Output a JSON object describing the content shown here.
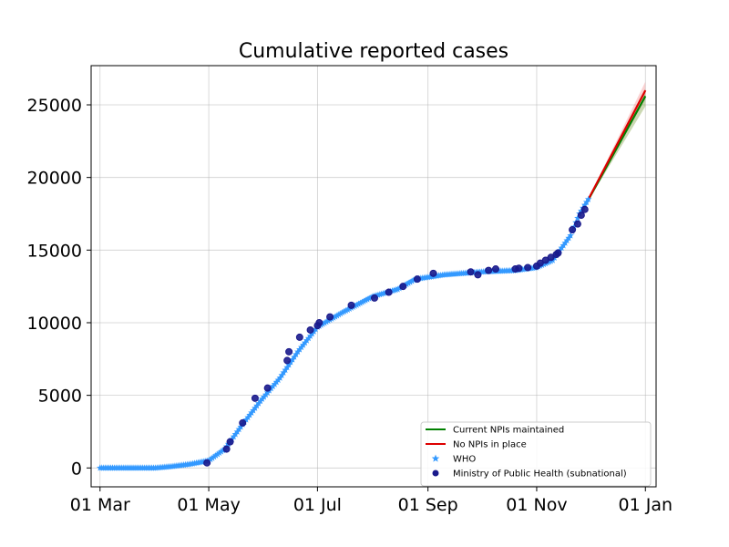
{
  "chart_data": {
    "type": "line",
    "title": "Cumulative reported cases",
    "xlabel": "",
    "ylabel": "",
    "x_axis": {
      "type": "date",
      "range": [
        "2020-02-25",
        "2021-01-07"
      ],
      "ticks": [
        {
          "date": "2020-03-01",
          "label": "01 Mar"
        },
        {
          "date": "2020-05-01",
          "label": "01 May"
        },
        {
          "date": "2020-07-01",
          "label": "01 Jul"
        },
        {
          "date": "2020-09-01",
          "label": "01 Sep"
        },
        {
          "date": "2020-11-01",
          "label": "01 Nov"
        },
        {
          "date": "2021-01-01",
          "label": "01 Jan"
        }
      ]
    },
    "y_axis": {
      "range": [
        -1300,
        27700
      ],
      "ticks": [
        0,
        5000,
        10000,
        15000,
        20000,
        25000
      ]
    },
    "grid": true,
    "legend_position": "bottom-right",
    "series": [
      {
        "name": "Current NPIs maintained",
        "kind": "line",
        "color": "#008000",
        "band_color": "#6b8e23",
        "x": [
          "2020-11-27",
          "2021-01-01"
        ],
        "y": [
          17800,
          25600
        ],
        "band_upper": [
          17800,
          26100
        ],
        "band_lower": [
          17800,
          24900
        ]
      },
      {
        "name": "No NPIs in place",
        "kind": "line",
        "color": "#dd0000",
        "band_color": "#f08080",
        "x": [
          "2020-11-27",
          "2021-01-01"
        ],
        "y": [
          17800,
          26000
        ],
        "band_upper": [
          17800,
          26600
        ],
        "band_lower": [
          17800,
          25400
        ]
      },
      {
        "name": "WHO",
        "kind": "scatter",
        "marker": "star",
        "color": "#3399ff",
        "x": [
          "2020-03-01",
          "2020-03-15",
          "2020-04-01",
          "2020-04-10",
          "2020-04-20",
          "2020-05-01",
          "2020-05-10",
          "2020-05-20",
          "2020-05-30",
          "2020-06-10",
          "2020-06-20",
          "2020-07-01",
          "2020-07-15",
          "2020-08-01",
          "2020-08-15",
          "2020-08-25",
          "2020-09-10",
          "2020-10-01",
          "2020-10-20",
          "2020-11-01",
          "2020-11-10",
          "2020-11-20",
          "2020-11-25",
          "2020-11-30"
        ],
        "y": [
          0,
          0,
          0,
          100,
          250,
          500,
          1300,
          3000,
          4600,
          6200,
          8000,
          9700,
          10700,
          11800,
          12300,
          13000,
          13300,
          13500,
          13600,
          13800,
          14300,
          16000,
          17500,
          18500
        ]
      },
      {
        "name": "Ministry of Public Health (subnational)",
        "kind": "scatter",
        "marker": "circle",
        "color": "#1a1a8c",
        "x": [
          "2020-04-30",
          "2020-05-11",
          "2020-05-13",
          "2020-05-20",
          "2020-05-27",
          "2020-06-03",
          "2020-06-14",
          "2020-06-15",
          "2020-06-21",
          "2020-06-27",
          "2020-07-01",
          "2020-07-02",
          "2020-07-08",
          "2020-07-20",
          "2020-08-02",
          "2020-08-10",
          "2020-08-18",
          "2020-08-26",
          "2020-09-04",
          "2020-09-25",
          "2020-09-29",
          "2020-10-05",
          "2020-10-09",
          "2020-10-20",
          "2020-10-22",
          "2020-10-27",
          "2020-11-01",
          "2020-11-03",
          "2020-11-06",
          "2020-11-09",
          "2020-11-12",
          "2020-11-13",
          "2020-11-21",
          "2020-11-24",
          "2020-11-26",
          "2020-11-28"
        ],
        "y": [
          350,
          1300,
          1800,
          3100,
          4800,
          5500,
          7400,
          8000,
          9000,
          9500,
          9800,
          10000,
          10400,
          11200,
          11700,
          12100,
          12500,
          13000,
          13400,
          13500,
          13300,
          13600,
          13700,
          13700,
          13750,
          13800,
          13900,
          14100,
          14300,
          14500,
          14700,
          14800,
          16400,
          16800,
          17400,
          17800
        ]
      }
    ]
  }
}
